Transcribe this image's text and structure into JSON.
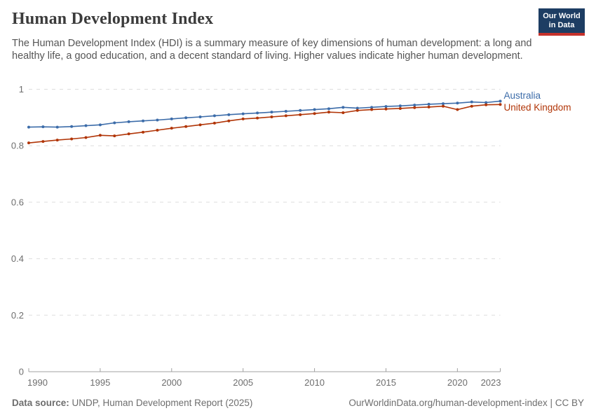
{
  "header": {
    "title": "Human Development Index",
    "subtitle": "The Human Development Index (HDI) is a summary measure of key dimensions of human development: a long and healthy life, a good education, and a decent standard of living. Higher values indicate higher human development.",
    "logo": {
      "line1": "Our World",
      "line2": "in Data",
      "bg_color": "#1d3d63",
      "stripe_color": "#c5312b"
    }
  },
  "chart_data": {
    "type": "line",
    "title": "Human Development Index",
    "x": [
      1990,
      1991,
      1992,
      1993,
      1994,
      1995,
      1996,
      1997,
      1998,
      1999,
      2000,
      2001,
      2002,
      2003,
      2004,
      2005,
      2006,
      2007,
      2008,
      2009,
      2010,
      2011,
      2012,
      2013,
      2014,
      2015,
      2016,
      2017,
      2018,
      2019,
      2020,
      2021,
      2022,
      2023
    ],
    "series": [
      {
        "name": "Australia",
        "color": "#3c6ca9",
        "values": [
          0.866,
          0.867,
          0.866,
          0.868,
          0.871,
          0.874,
          0.881,
          0.885,
          0.888,
          0.891,
          0.895,
          0.899,
          0.902,
          0.906,
          0.91,
          0.913,
          0.916,
          0.919,
          0.922,
          0.925,
          0.928,
          0.931,
          0.936,
          0.933,
          0.936,
          0.939,
          0.941,
          0.944,
          0.947,
          0.949,
          0.951,
          0.955,
          0.953,
          0.958
        ]
      },
      {
        "name": "United Kingdom",
        "color": "#b13507",
        "values": [
          0.81,
          0.815,
          0.82,
          0.824,
          0.829,
          0.837,
          0.835,
          0.842,
          0.848,
          0.855,
          0.862,
          0.868,
          0.874,
          0.88,
          0.888,
          0.895,
          0.898,
          0.902,
          0.906,
          0.91,
          0.914,
          0.919,
          0.917,
          0.925,
          0.928,
          0.93,
          0.932,
          0.935,
          0.937,
          0.94,
          0.928,
          0.94,
          0.945,
          0.946
        ]
      }
    ],
    "xlabel": "",
    "ylabel": "",
    "ylim": [
      0,
      1
    ],
    "yticks": [
      0,
      0.2,
      0.4,
      0.6,
      0.8,
      1
    ],
    "ytick_labels": [
      "0",
      "0.2",
      "0.4",
      "0.6",
      "0.8",
      "1"
    ],
    "xticks": [
      1990,
      1995,
      2000,
      2005,
      2010,
      2015,
      2020,
      2023
    ],
    "grid": true,
    "grid_color": "#dddddd",
    "axis_color": "#a0a0a0",
    "tick_label_color": "#6e6e6e",
    "legend_position": "right-of-line-end"
  },
  "footer": {
    "source_label": "Data source:",
    "source_text": " UNDP, Human Development Report (2025)",
    "attribution": "OurWorldinData.org/human-development-index | CC BY"
  }
}
